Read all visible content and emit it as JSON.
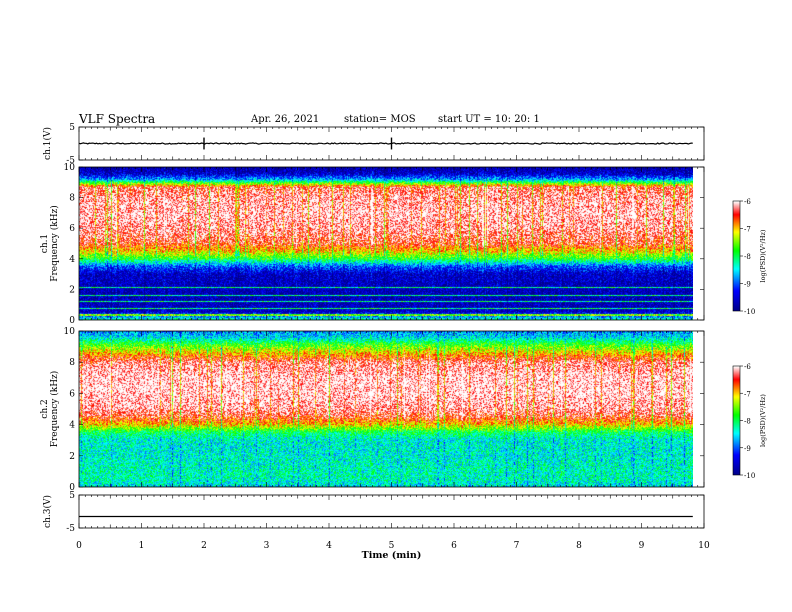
{
  "header": {
    "title": "VLF Spectra",
    "date": "Apr. 26, 2021",
    "station": "station= MOS",
    "start": "start UT =   10: 20: 1"
  },
  "colors": {
    "low": "#00008b",
    "mid1": "#0000ff",
    "mid2": "#00ffff",
    "mid3": "#00ff00",
    "mid4": "#ffff00",
    "high": "#ff0000",
    "peak": "#ffffff"
  },
  "chart_data": [
    {
      "type": "line",
      "panel": "ch1-waveform",
      "ylabel": "ch.1(V)",
      "ylim": [
        -5,
        5
      ],
      "yticks": [
        "5",
        "-5"
      ],
      "xlim": [
        0,
        10
      ],
      "series": [
        {
          "x": [
            0,
            9.82
          ],
          "values": [
            0,
            0
          ]
        }
      ]
    },
    {
      "type": "heatmap",
      "panel": "ch1-spectrogram",
      "ylabel_top": "ch.1",
      "ylabel": "Frequency (kHz)",
      "ylim": [
        0,
        10
      ],
      "yticks": [
        "0",
        "2",
        "4",
        "6",
        "8",
        "10"
      ],
      "xlim": [
        0,
        10
      ],
      "data_end_min": 9.82,
      "colorbar": {
        "label": "log(PSD)(V²/Hz)",
        "ticks": [
          "-6",
          "-7",
          "-8",
          "-9",
          "-10"
        ],
        "range": [
          -10,
          -6
        ]
      },
      "frequency_profile_khz": [
        0,
        0.5,
        1,
        2,
        3,
        3.5,
        4,
        4.5,
        5,
        6,
        7,
        8,
        8.7,
        9.2,
        9.6,
        10
      ],
      "frequency_profile_logpsd": [
        -8.3,
        -9.6,
        -9.7,
        -9.7,
        -9.6,
        -9.0,
        -7.8,
        -7.0,
        -6.4,
        -6.1,
        -6.0,
        -6.1,
        -6.3,
        -8.7,
        -9.6,
        -9.8
      ],
      "narrowband_lines_khz": [
        0.3,
        0.7,
        1.2,
        1.6,
        2.1
      ]
    },
    {
      "type": "heatmap",
      "panel": "ch2-spectrogram",
      "ylabel_top": "ch.2",
      "ylabel": "Frequency (kHz)",
      "ylim": [
        0,
        10
      ],
      "yticks": [
        "0",
        "2",
        "4",
        "6",
        "8",
        "10"
      ],
      "xlim": [
        0,
        10
      ],
      "data_end_min": 9.82,
      "colorbar": {
        "label": "log(PSD)(V²/Hz)",
        "ticks": [
          "-6",
          "-7",
          "-8",
          "-9",
          "-10"
        ],
        "range": [
          -10,
          -6
        ]
      },
      "frequency_profile_khz": [
        0,
        0.5,
        1,
        2,
        3,
        3.5,
        4,
        4.5,
        5,
        6,
        7,
        8,
        8.7,
        9.2,
        9.6,
        10
      ],
      "frequency_profile_logpsd": [
        -8.5,
        -8.3,
        -8.3,
        -8.4,
        -8.4,
        -8.0,
        -7.0,
        -6.4,
        -6.1,
        -5.95,
        -5.95,
        -6.2,
        -7.1,
        -7.8,
        -8.5,
        -8.8
      ]
    },
    {
      "type": "line",
      "panel": "ch3-waveform",
      "ylabel": "ch.3(V)",
      "ylim": [
        -5,
        5
      ],
      "yticks": [
        "5",
        "-5"
      ],
      "xlim": [
        0,
        10
      ],
      "series": [
        {
          "x": [
            0,
            9.82
          ],
          "values": [
            -1.5,
            -1.5
          ]
        }
      ]
    }
  ],
  "xaxis": {
    "label": "Time (min)",
    "ticks": [
      "0",
      "1",
      "2",
      "3",
      "4",
      "5",
      "6",
      "7",
      "8",
      "9",
      "10"
    ],
    "range": [
      0,
      10
    ]
  }
}
